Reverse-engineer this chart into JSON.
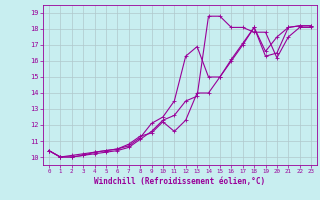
{
  "xlabel": "Windchill (Refroidissement éolien,°C)",
  "bg_color": "#c8eef0",
  "line_color": "#990099",
  "grid_color": "#b0c8cc",
  "xlim": [
    -0.5,
    23.5
  ],
  "ylim": [
    9.5,
    19.5
  ],
  "xticks": [
    0,
    1,
    2,
    3,
    4,
    5,
    6,
    7,
    8,
    9,
    10,
    11,
    12,
    13,
    14,
    15,
    16,
    17,
    18,
    19,
    20,
    21,
    22,
    23
  ],
  "yticks": [
    10,
    11,
    12,
    13,
    14,
    15,
    16,
    17,
    18,
    19
  ],
  "line1_x": [
    0,
    1,
    2,
    3,
    4,
    5,
    6,
    7,
    8,
    9,
    10,
    11,
    12,
    13,
    14,
    15,
    16,
    17,
    18,
    19,
    20,
    21,
    22,
    23
  ],
  "line1_y": [
    10.4,
    10.0,
    10.0,
    10.1,
    10.2,
    10.3,
    10.4,
    10.6,
    11.1,
    11.6,
    12.3,
    12.6,
    13.5,
    13.8,
    18.8,
    18.8,
    18.1,
    18.1,
    17.8,
    17.8,
    16.2,
    17.5,
    18.1,
    18.1
  ],
  "line2_x": [
    0,
    1,
    2,
    3,
    4,
    5,
    6,
    7,
    8,
    9,
    10,
    11,
    12,
    13,
    14,
    15,
    16,
    17,
    18,
    19,
    20,
    21,
    22,
    23
  ],
  "line2_y": [
    10.4,
    10.0,
    10.0,
    10.1,
    10.3,
    10.4,
    10.5,
    10.7,
    11.2,
    12.1,
    12.5,
    13.5,
    16.3,
    16.9,
    15.0,
    15.0,
    16.0,
    17.0,
    18.1,
    16.6,
    17.5,
    18.1,
    18.2,
    18.2
  ],
  "line3_x": [
    0,
    1,
    2,
    3,
    4,
    5,
    6,
    7,
    8,
    9,
    10,
    11,
    12,
    13,
    14,
    15,
    16,
    17,
    18,
    19,
    20,
    21,
    22,
    23
  ],
  "line3_y": [
    10.4,
    10.0,
    10.1,
    10.2,
    10.3,
    10.4,
    10.5,
    10.8,
    11.3,
    11.5,
    12.2,
    11.6,
    12.3,
    14.0,
    14.0,
    15.0,
    16.1,
    17.1,
    18.1,
    16.3,
    16.5,
    18.1,
    18.2,
    18.2
  ],
  "xlabel_fontsize": 5.5,
  "tick_fontsize": 5.0,
  "lw": 0.8,
  "ms": 1.8
}
